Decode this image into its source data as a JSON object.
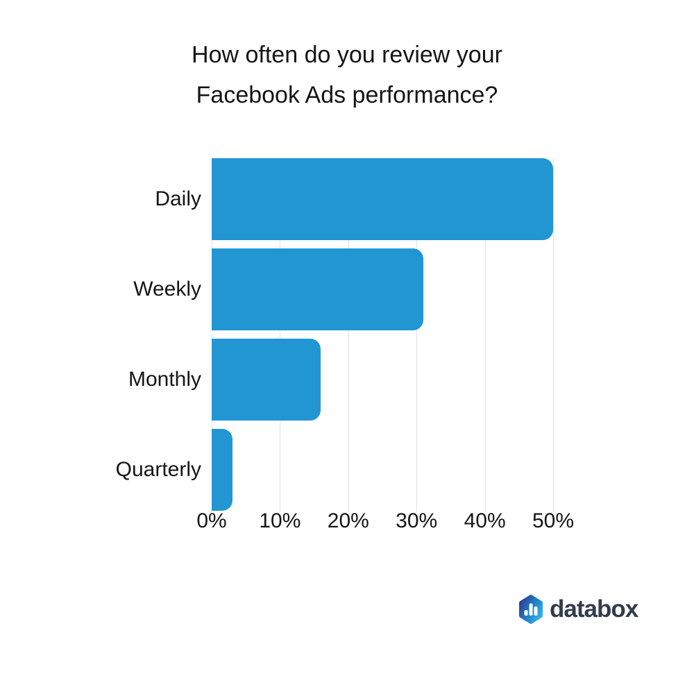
{
  "chart_data": {
    "type": "bar",
    "orientation": "horizontal",
    "title": "How often do you review your Facebook Ads performance?",
    "title_lines": [
      "How often do you review your",
      "Facebook Ads performance?"
    ],
    "categories": [
      "Daily",
      "Weekly",
      "Monthly",
      "Quarterly"
    ],
    "values": [
      50,
      31,
      16,
      3
    ],
    "unit": "%",
    "x_ticks": [
      "0%",
      "10%",
      "20%",
      "30%",
      "40%",
      "50%"
    ],
    "xlim": [
      0,
      50
    ],
    "xlabel": "",
    "ylabel": "",
    "grid": "vertical",
    "legend_position": "none",
    "bar_color": "#2196d3",
    "gridline_color": "#e2e2e2",
    "text_color": "#141414"
  },
  "branding": {
    "logo_text": "databox",
    "logo_icon": "databox-hexagon-chart-icon",
    "logo_text_color": "#323c4b",
    "logo_gradient_start": "#313c8f",
    "logo_gradient_mid": "#1d7dc4",
    "logo_gradient_end": "#2fb3e9",
    "logo_glyph_color": "#ffffff"
  }
}
